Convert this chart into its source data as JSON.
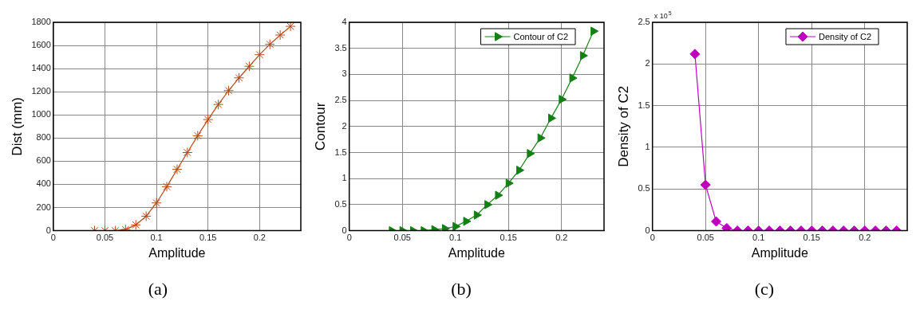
{
  "chart_data": [
    {
      "type": "line",
      "xlabel": "Amplitude",
      "ylabel": "Dist (mm)",
      "x": [
        0.04,
        0.05,
        0.06,
        0.07,
        0.08,
        0.09,
        0.1,
        0.11,
        0.12,
        0.13,
        0.14,
        0.15,
        0.16,
        0.17,
        0.18,
        0.19,
        0.2,
        0.21,
        0.22,
        0.23
      ],
      "series": [
        {
          "color": "#b84a1a",
          "values": [
            0,
            0,
            0,
            10,
            50,
            125,
            240,
            380,
            530,
            675,
            820,
            960,
            1090,
            1210,
            1320,
            1420,
            1520,
            1610,
            1690,
            1765
          ]
        }
      ],
      "xlim": [
        0,
        0.24
      ],
      "xticks": [
        0,
        0.05,
        0.1,
        0.15,
        0.2
      ],
      "ylim": [
        0,
        1800
      ],
      "yticks": [
        0,
        200,
        400,
        600,
        800,
        1000,
        1200,
        1400,
        1600,
        1800
      ],
      "grid": true,
      "legend": false,
      "marker": "cross",
      "annotations": [
        "(a)"
      ]
    },
    {
      "type": "line",
      "xlabel": "Amplitude",
      "ylabel": "Contour",
      "x": [
        0.04,
        0.05,
        0.06,
        0.07,
        0.08,
        0.09,
        0.1,
        0.11,
        0.12,
        0.13,
        0.14,
        0.15,
        0.16,
        0.17,
        0.18,
        0.19,
        0.2,
        0.21,
        0.22,
        0.23
      ],
      "series": [
        {
          "name": "Contour of C2",
          "color": "#138013",
          "values": [
            0,
            0,
            0,
            0,
            0.02,
            0.04,
            0.08,
            0.18,
            0.3,
            0.5,
            0.68,
            0.91,
            1.16,
            1.48,
            1.78,
            2.16,
            2.52,
            2.93,
            3.36,
            3.83
          ]
        }
      ],
      "xlim": [
        0,
        0.24
      ],
      "xticks": [
        0,
        0.05,
        0.1,
        0.15,
        0.2
      ],
      "ylim": [
        0,
        4
      ],
      "yticks": [
        0,
        0.5,
        1,
        1.5,
        2,
        2.5,
        3,
        3.5,
        4
      ],
      "grid": true,
      "legend": "top right",
      "marker": "triangle",
      "annotations": [
        "(b)"
      ]
    },
    {
      "type": "line",
      "xlabel": "Amplitude",
      "ylabel": "Density of C2",
      "x": [
        0.04,
        0.05,
        0.06,
        0.07,
        0.08,
        0.09,
        0.1,
        0.11,
        0.12,
        0.13,
        0.14,
        0.15,
        0.16,
        0.17,
        0.18,
        0.19,
        0.2,
        0.21,
        0.22,
        0.23
      ],
      "series": [
        {
          "name": "Density of C2",
          "color": "#c000c0",
          "values": [
            2.12,
            0.55,
            0.11,
            0.03,
            0,
            0,
            0,
            0,
            0,
            0,
            0,
            0,
            0,
            0,
            0,
            0,
            0,
            0,
            0,
            0
          ]
        }
      ],
      "xlim": [
        0,
        0.24
      ],
      "xticks": [
        0,
        0.05,
        0.1,
        0.15,
        0.2
      ],
      "ylim": [
        0,
        2.5
      ],
      "yticks": [
        0,
        0.5,
        1,
        1.5,
        2,
        2.5
      ],
      "grid": true,
      "legend": "top right",
      "marker": "diamond",
      "annotations": [
        "(c)",
        "x 10$^{5}$"
      ]
    }
  ]
}
